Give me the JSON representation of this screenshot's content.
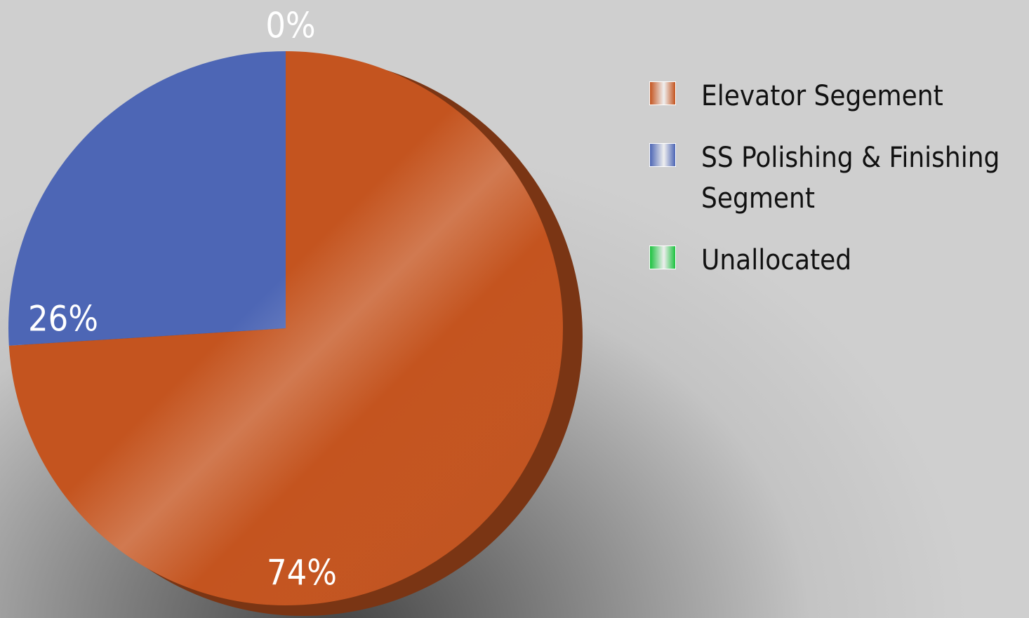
{
  "chart_data": {
    "type": "pie",
    "categories": [
      "Elevator Segement",
      "SS Polishing & Finishing Segment",
      "Unallocated"
    ],
    "values": [
      74,
      26,
      0
    ],
    "value_labels": [
      "74%",
      "26%",
      "0%"
    ],
    "colors": [
      "#c4541f",
      "#4d66b5",
      "#1cc23f"
    ],
    "legend": "right"
  }
}
